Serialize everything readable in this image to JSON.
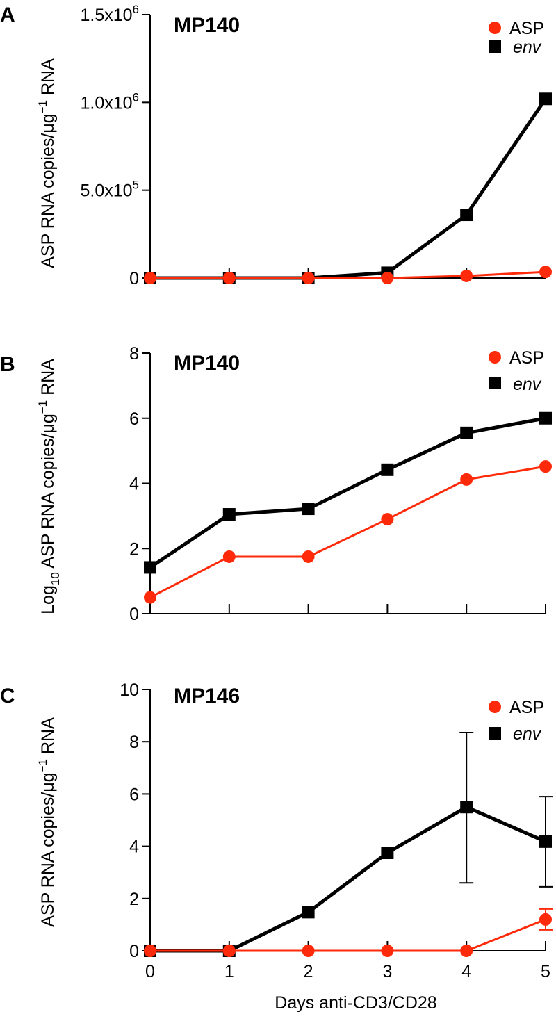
{
  "colors": {
    "asp": "#ff2a0a",
    "env": "#000000"
  },
  "x_axis": {
    "label": "Days anti-CD3/CD28",
    "ticks": [
      "0",
      "1",
      "2",
      "3",
      "4",
      "5"
    ]
  },
  "chart_data": [
    {
      "panel": "A",
      "type": "line",
      "title": "MP140",
      "ylabel": "ASP RNA copies/μg⁻¹ RNA",
      "ylim": [
        0,
        1500000
      ],
      "y_ticks": [
        {
          "value": 0,
          "base": "0",
          "exp": ""
        },
        {
          "value": 500000,
          "base": "5.0x10",
          "exp": "5"
        },
        {
          "value": 1000000,
          "base": "1.0x10",
          "exp": "6"
        },
        {
          "value": 1500000,
          "base": "1.5x10",
          "exp": "6"
        }
      ],
      "x": [
        0,
        1,
        2,
        3,
        4,
        5
      ],
      "show_x_tick_labels": false,
      "legend": [
        "ASP",
        "env"
      ],
      "series": [
        {
          "name": "ASP",
          "marker": "circle",
          "values": [
            0,
            0,
            0,
            0,
            12000,
            35000
          ]
        },
        {
          "name": "env",
          "marker": "square",
          "values": [
            0,
            0,
            0,
            30000,
            360000,
            1020000
          ]
        }
      ]
    },
    {
      "panel": "B",
      "type": "line",
      "title": "MP140",
      "ylabel": "Log10 ASP RNA copies/μg⁻¹ RNA",
      "ylim": [
        0,
        8
      ],
      "y_ticks": [
        {
          "value": 0,
          "base": "0",
          "exp": ""
        },
        {
          "value": 2,
          "base": "2",
          "exp": ""
        },
        {
          "value": 4,
          "base": "4",
          "exp": ""
        },
        {
          "value": 6,
          "base": "6",
          "exp": ""
        },
        {
          "value": 8,
          "base": "8",
          "exp": ""
        }
      ],
      "x": [
        0,
        1,
        2,
        3,
        4,
        5
      ],
      "show_x_tick_labels": false,
      "legend": [
        "ASP",
        "env"
      ],
      "series": [
        {
          "name": "ASP",
          "marker": "circle",
          "values": [
            0.5,
            1.75,
            1.75,
            2.9,
            4.12,
            4.52
          ]
        },
        {
          "name": "env",
          "marker": "square",
          "values": [
            1.42,
            3.05,
            3.22,
            4.42,
            5.55,
            6.0
          ]
        }
      ]
    },
    {
      "panel": "C",
      "type": "line",
      "title": "MP146",
      "ylabel": "ASP RNA copies/μg⁻¹ RNA",
      "ylim": [
        0,
        10
      ],
      "y_ticks": [
        {
          "value": 0,
          "base": "0",
          "exp": ""
        },
        {
          "value": 2,
          "base": "2",
          "exp": ""
        },
        {
          "value": 4,
          "base": "4",
          "exp": ""
        },
        {
          "value": 6,
          "base": "6",
          "exp": ""
        },
        {
          "value": 8,
          "base": "8",
          "exp": ""
        },
        {
          "value": 10,
          "base": "10",
          "exp": ""
        }
      ],
      "x": [
        0,
        1,
        2,
        3,
        4,
        5
      ],
      "show_x_tick_labels": true,
      "legend": [
        "ASP",
        "env"
      ],
      "series": [
        {
          "name": "ASP",
          "marker": "circle",
          "values": [
            0,
            0,
            0,
            0,
            0,
            1.2
          ],
          "error": [
            null,
            null,
            null,
            null,
            null,
            [
              0.8,
              1.6
            ]
          ]
        },
        {
          "name": "env",
          "marker": "square",
          "values": [
            0,
            0,
            1.48,
            3.75,
            5.5,
            4.18
          ],
          "error": [
            null,
            null,
            null,
            null,
            [
              2.6,
              8.35
            ],
            [
              2.45,
              5.9
            ]
          ]
        }
      ]
    }
  ]
}
